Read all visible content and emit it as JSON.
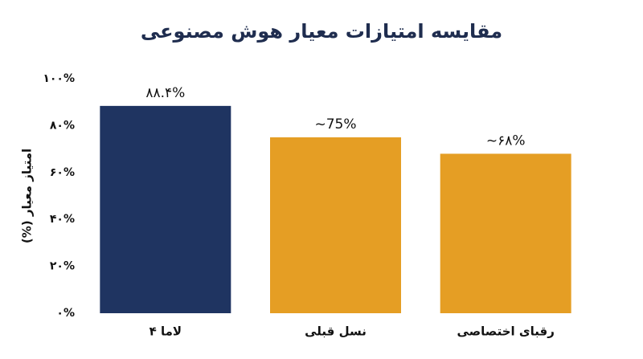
{
  "chart_data": {
    "type": "bar",
    "title": "مقایسه امتیازات معیار هوش مصنوعی",
    "y_label": "امتیاز معیار (%)",
    "categories": [
      "لاما ۴",
      "نسل قبلی",
      "رقبای اختصاصی"
    ],
    "values": [
      88.4,
      75,
      68
    ],
    "value_labels": [
      "۸۸.۴%",
      "~75%",
      "~۶۸%"
    ],
    "colors": [
      "#1f3461",
      "#e59e24",
      "#e59e24"
    ],
    "ylim": [
      0,
      100
    ],
    "yticks": [
      {
        "value": 0,
        "label": "۰%"
      },
      {
        "value": 20,
        "label": "۲۰%"
      },
      {
        "value": 40,
        "label": "۴۰%"
      },
      {
        "value": 60,
        "label": "۶۰%"
      },
      {
        "value": 80,
        "label": "۸۰%"
      },
      {
        "value": 100,
        "label": "۱۰۰%"
      }
    ],
    "grid": false
  }
}
